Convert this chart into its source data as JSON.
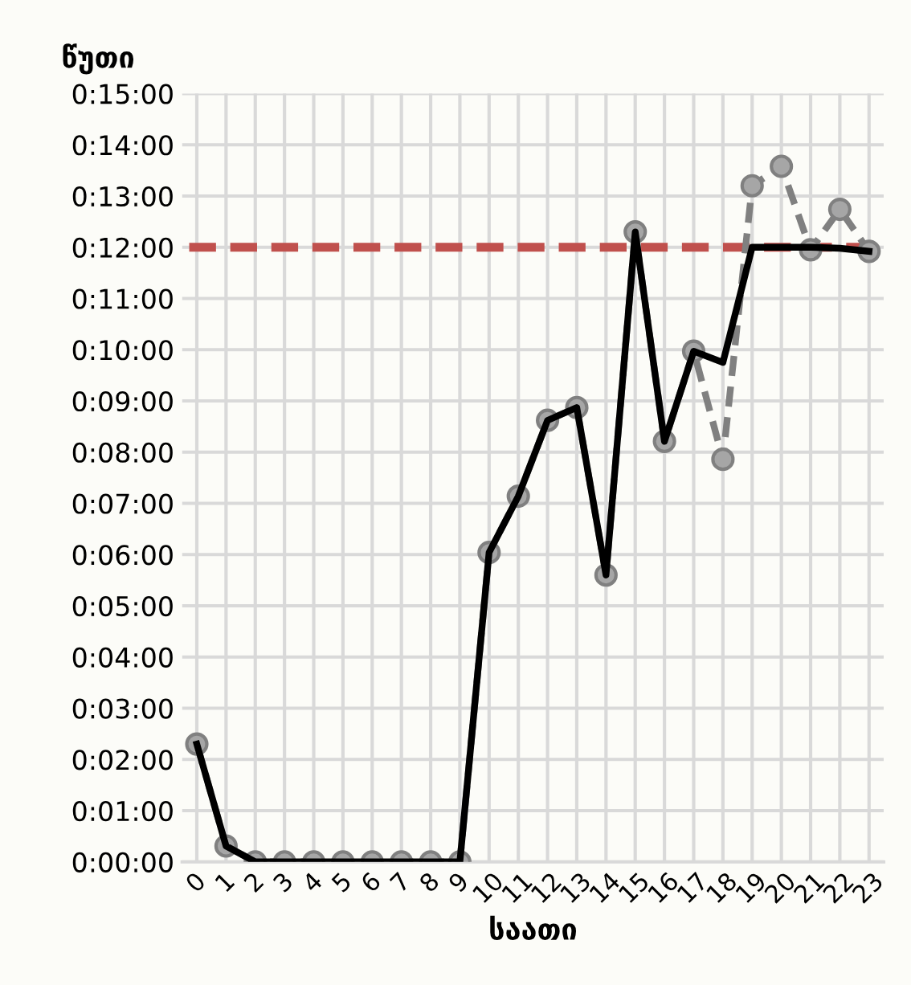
{
  "chart_data": {
    "type": "line",
    "xlabel": "საათი",
    "ylabel": "წუთი",
    "categories": [
      "0",
      "1",
      "2",
      "3",
      "4",
      "5",
      "6",
      "7",
      "8",
      "9",
      "10",
      "11",
      "12",
      "13",
      "14",
      "15",
      "16",
      "17",
      "18",
      "19",
      "20",
      "21",
      "22",
      "23"
    ],
    "series": [
      {
        "color": "#808080",
        "marker": "circle",
        "line_style": "dashed",
        "values": [
          2.3,
          0.31,
          0,
          0,
          0,
          0,
          0,
          0,
          0,
          0,
          6.04,
          7.14,
          8.62,
          8.87,
          5.6,
          12.3,
          8.21,
          9.97,
          7.86,
          13.2,
          13.58,
          11.95,
          12.74,
          11.92
        ]
      },
      {
        "color": "#000000",
        "marker": "none",
        "line_style": "solid",
        "values": [
          2.3,
          0.31,
          0,
          0,
          0,
          0,
          0,
          0,
          0,
          0,
          6.04,
          7.14,
          8.62,
          8.87,
          5.6,
          12.3,
          8.21,
          9.97,
          9.75,
          12.0,
          12.0,
          12.0,
          11.98,
          11.92
        ]
      }
    ],
    "ylim": [
      0,
      15
    ],
    "yticks": [
      {
        "value": 0,
        "label": "0:00:00"
      },
      {
        "value": 1,
        "label": "0:01:00"
      },
      {
        "value": 2,
        "label": "0:02:00"
      },
      {
        "value": 3,
        "label": "0:03:00"
      },
      {
        "value": 4,
        "label": "0:04:00"
      },
      {
        "value": 5,
        "label": "0:05:00"
      },
      {
        "value": 6,
        "label": "0:06:00"
      },
      {
        "value": 7,
        "label": "0:07:00"
      },
      {
        "value": 8,
        "label": "0:08:00"
      },
      {
        "value": 9,
        "label": "0:09:00"
      },
      {
        "value": 10,
        "label": "0:10:00"
      },
      {
        "value": 11,
        "label": "0:11:00"
      },
      {
        "value": 12,
        "label": "0:12:00"
      },
      {
        "value": 13,
        "label": "0:13:00"
      },
      {
        "value": 14,
        "label": "0:14:00"
      },
      {
        "value": 15,
        "label": "0:15:00"
      }
    ],
    "ref_lines": [
      {
        "axis": "y",
        "value": 12,
        "color": "#c0504d",
        "line_style": "dashed"
      }
    ],
    "grid": true
  }
}
